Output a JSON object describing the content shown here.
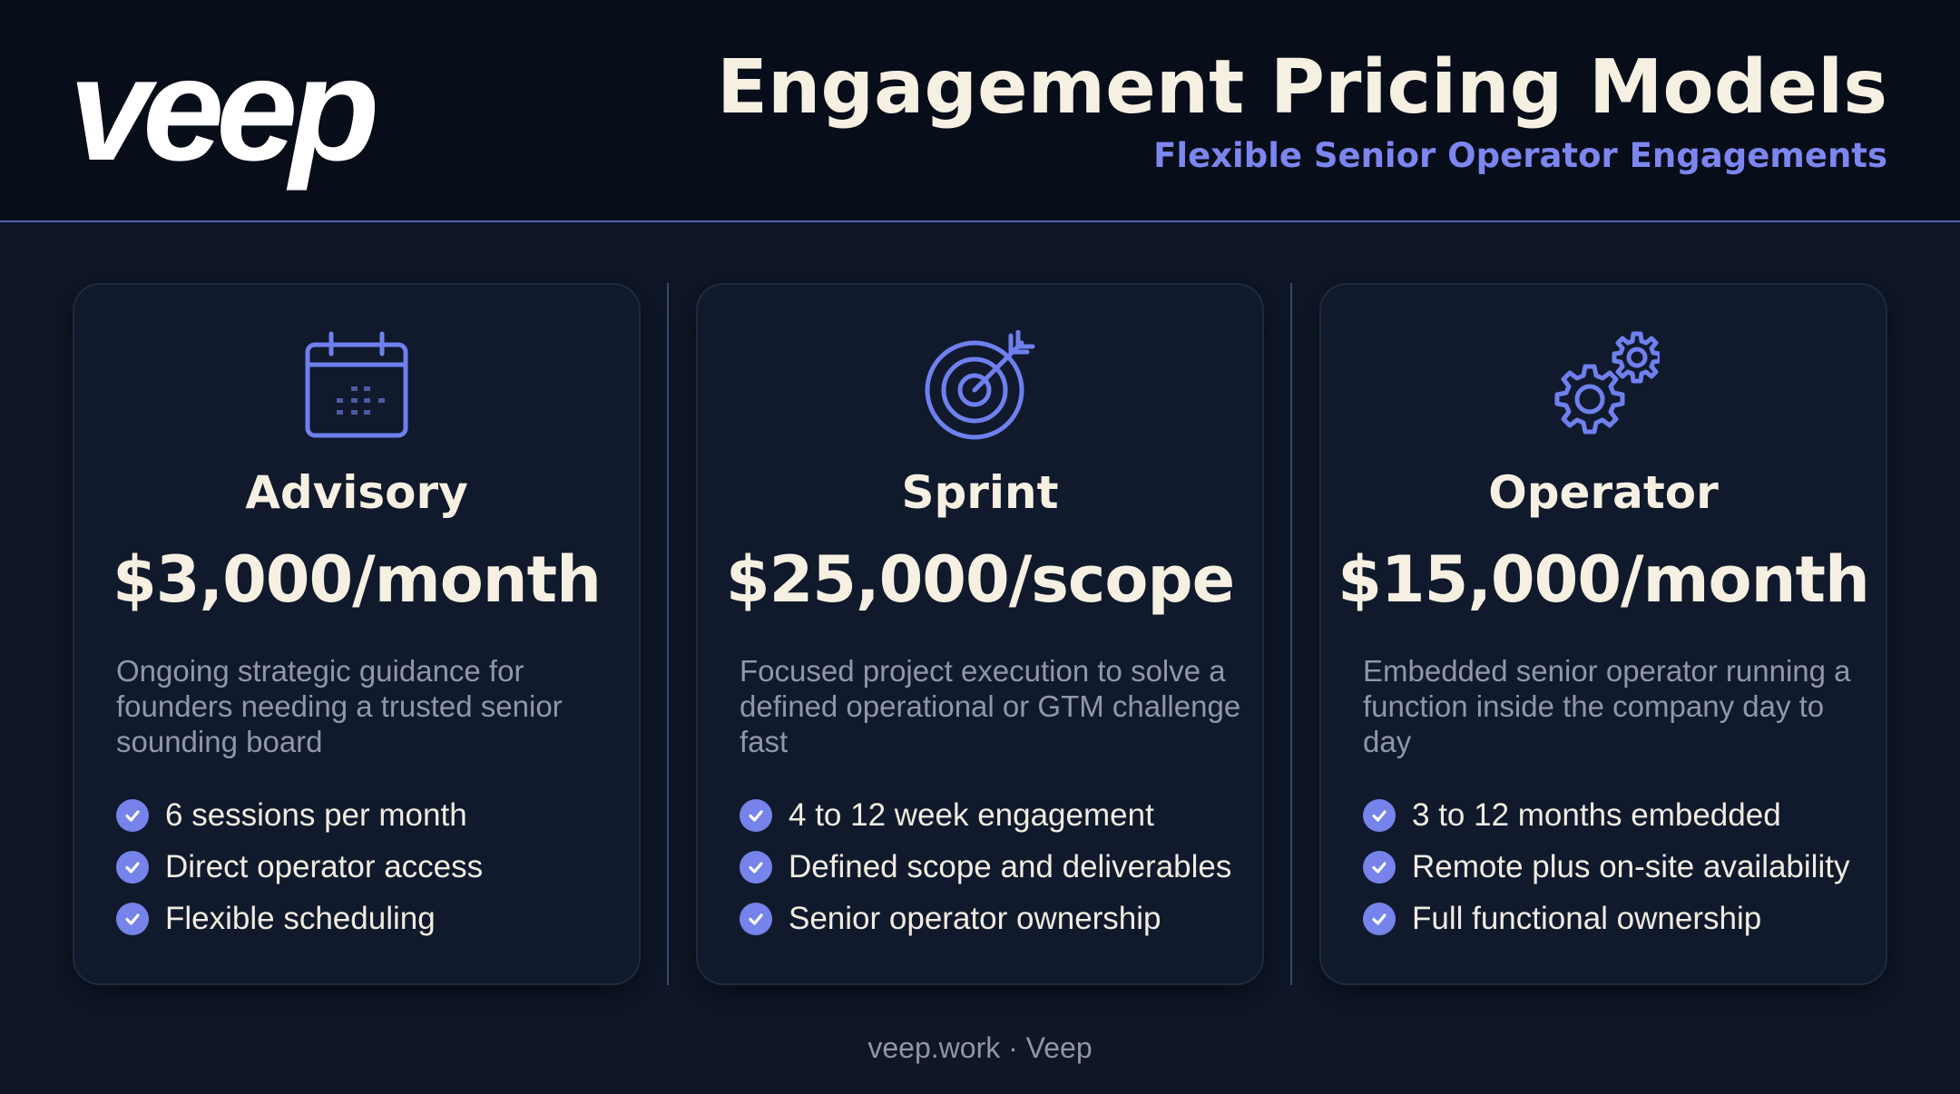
{
  "header": {
    "logo_text": "veep",
    "title": "Engagement Pricing Models",
    "subtitle": "Flexible Senior Operator Engagements"
  },
  "colors": {
    "background": "#0e1627",
    "header_background": "#080d1a",
    "accent": "#7c86ee",
    "card_background": "#111a2c",
    "heading_text": "#f5f0e2",
    "muted_text": "#8f97a8"
  },
  "cards": [
    {
      "icon": "calendar-icon",
      "title": "Advisory",
      "price": "$3,000/month",
      "description": "Ongoing strategic guidance for founders needing a trusted senior sounding board",
      "features": [
        "6 sessions per month",
        "Direct operator access",
        "Flexible scheduling"
      ]
    },
    {
      "icon": "target-icon",
      "title": "Sprint",
      "price": "$25,000/scope",
      "description": "Focused project execution to solve a defined operational or GTM challenge fast",
      "features": [
        "4 to 12 week engagement",
        "Defined scope and deliverables",
        "Senior operator ownership"
      ]
    },
    {
      "icon": "gears-icon",
      "title": "Operator",
      "price": "$15,000/month",
      "description": "Embedded senior operator running a function inside the company day to day",
      "features": [
        "3 to 12 months embedded",
        "Remote plus on-site availability",
        "Full functional ownership"
      ]
    }
  ],
  "footer": {
    "text": "veep.work · Veep"
  }
}
